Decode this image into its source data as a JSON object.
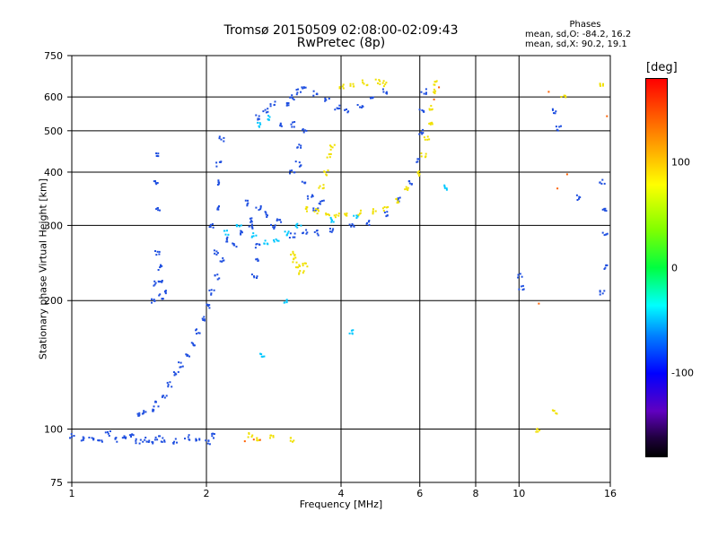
{
  "header": {
    "title_line1": "Tromsø 20150509 02:08:00-02:09:43",
    "title_line2": "RwPretec (8p)"
  },
  "phases": {
    "label": "Phases",
    "o_stats": "mean, sd,O: -84.2, 16.2",
    "x_stats": "mean, sd,X:  90.2, 19.1"
  },
  "chart_data": {
    "type": "scatter",
    "xlabel": "Frequency [MHz]",
    "ylabel": "Stationary phase Virtual Height [km]",
    "xscale": "log",
    "yscale": "log",
    "xlim": [
      1,
      16
    ],
    "ylim": [
      75,
      750
    ],
    "x_ticks": [
      1,
      2,
      4,
      6,
      8,
      10,
      16
    ],
    "x_tick_labels": [
      "1",
      "2",
      "4",
      "6",
      "8",
      "10",
      "16"
    ],
    "y_ticks": [
      75,
      100,
      200,
      300,
      400,
      500,
      600,
      750
    ],
    "y_tick_labels": [
      "75",
      "100",
      "200",
      "300",
      "400",
      "500",
      "600",
      "750"
    ],
    "grid": true,
    "colorbar": {
      "unit": "[deg]",
      "range": [
        -180,
        180
      ],
      "ticks": [
        100,
        0,
        -100
      ],
      "tick_labels": [
        "100",
        "0",
        "-100"
      ]
    },
    "series": [
      {
        "mode": "O",
        "color": "#1f4fe0",
        "points": [
          [
            1.0,
            97
          ],
          [
            1.05,
            95
          ],
          [
            1.1,
            96
          ],
          [
            1.15,
            94
          ],
          [
            1.2,
            98
          ],
          [
            1.25,
            95
          ],
          [
            1.3,
            96
          ],
          [
            1.35,
            97
          ],
          [
            1.4,
            94
          ],
          [
            1.45,
            95
          ],
          [
            1.5,
            93
          ],
          [
            1.55,
            96
          ],
          [
            1.6,
            95
          ],
          [
            1.7,
            94
          ],
          [
            1.8,
            96
          ],
          [
            1.9,
            95
          ],
          [
            2.0,
            94
          ],
          [
            2.05,
            97
          ],
          [
            1.4,
            108
          ],
          [
            1.45,
            110
          ],
          [
            1.5,
            112
          ],
          [
            1.55,
            115
          ],
          [
            1.6,
            120
          ],
          [
            1.65,
            128
          ],
          [
            1.7,
            135
          ],
          [
            1.75,
            142
          ],
          [
            1.8,
            150
          ],
          [
            1.85,
            160
          ],
          [
            1.9,
            170
          ],
          [
            1.95,
            182
          ],
          [
            2.0,
            195
          ],
          [
            2.05,
            210
          ],
          [
            2.1,
            228
          ],
          [
            2.15,
            250
          ],
          [
            2.05,
            300
          ],
          [
            2.1,
            330
          ],
          [
            2.1,
            380
          ],
          [
            2.12,
            420
          ],
          [
            2.15,
            480
          ],
          [
            2.1,
            260
          ],
          [
            2.2,
            280
          ],
          [
            1.52,
            200
          ],
          [
            1.54,
            220
          ],
          [
            1.56,
            240
          ],
          [
            1.55,
            260
          ],
          [
            1.57,
            225
          ],
          [
            1.6,
            210
          ],
          [
            1.58,
            205
          ],
          [
            1.55,
            330
          ],
          [
            1.53,
            380
          ],
          [
            1.55,
            440
          ],
          [
            2.3,
            270
          ],
          [
            2.4,
            290
          ],
          [
            2.5,
            310
          ],
          [
            2.6,
            330
          ],
          [
            2.5,
            300
          ],
          [
            2.45,
            340
          ],
          [
            2.7,
            320
          ],
          [
            2.8,
            300
          ],
          [
            2.9,
            310
          ],
          [
            2.6,
            250
          ],
          [
            2.55,
            230
          ],
          [
            2.6,
            270
          ],
          [
            3.1,
            285
          ],
          [
            3.3,
            290
          ],
          [
            3.5,
            290
          ],
          [
            3.8,
            295
          ],
          [
            4.2,
            300
          ],
          [
            4.6,
            305
          ],
          [
            5.0,
            320
          ],
          [
            5.4,
            345
          ],
          [
            5.7,
            380
          ],
          [
            5.9,
            430
          ],
          [
            6.0,
            500
          ],
          [
            6.05,
            560
          ],
          [
            6.1,
            620
          ],
          [
            3.05,
            580
          ],
          [
            3.1,
            600
          ],
          [
            3.2,
            620
          ],
          [
            3.3,
            630
          ],
          [
            3.5,
            615
          ],
          [
            3.7,
            590
          ],
          [
            3.9,
            570
          ],
          [
            4.1,
            560
          ],
          [
            4.4,
            575
          ],
          [
            4.7,
            600
          ],
          [
            5.0,
            620
          ],
          [
            3.1,
            400
          ],
          [
            3.2,
            420
          ],
          [
            3.3,
            380
          ],
          [
            3.4,
            350
          ],
          [
            3.5,
            330
          ],
          [
            3.6,
            340
          ],
          [
            3.2,
            460
          ],
          [
            3.1,
            520
          ],
          [
            3.3,
            500
          ],
          [
            2.7,
            560
          ],
          [
            2.8,
            580
          ],
          [
            2.6,
            540
          ],
          [
            2.9,
            520
          ],
          [
            10.0,
            230
          ],
          [
            10.1,
            215
          ],
          [
            12.0,
            560
          ],
          [
            12.2,
            510
          ],
          [
            13.5,
            350
          ],
          [
            15.3,
            380
          ],
          [
            15.4,
            330
          ],
          [
            15.5,
            290
          ],
          [
            15.6,
            240
          ],
          [
            15.3,
            210
          ]
        ]
      },
      {
        "mode": "X",
        "color": "#f0e000",
        "points": [
          [
            3.3,
            330
          ],
          [
            3.5,
            325
          ],
          [
            3.7,
            320
          ],
          [
            3.9,
            318
          ],
          [
            4.1,
            320
          ],
          [
            4.4,
            322
          ],
          [
            4.7,
            325
          ],
          [
            5.0,
            330
          ],
          [
            5.3,
            345
          ],
          [
            5.6,
            370
          ],
          [
            5.9,
            400
          ],
          [
            6.1,
            440
          ],
          [
            6.2,
            480
          ],
          [
            6.3,
            520
          ],
          [
            6.35,
            570
          ],
          [
            6.4,
            620
          ],
          [
            6.45,
            650
          ],
          [
            3.1,
            260
          ],
          [
            3.15,
            250
          ],
          [
            3.2,
            240
          ],
          [
            3.25,
            235
          ],
          [
            3.3,
            245
          ],
          [
            3.6,
            370
          ],
          [
            3.7,
            400
          ],
          [
            3.75,
            440
          ],
          [
            3.8,
            460
          ],
          [
            4.0,
            640
          ],
          [
            4.2,
            645
          ],
          [
            4.5,
            650
          ],
          [
            4.8,
            655
          ],
          [
            5.0,
            648
          ],
          [
            2.5,
            97
          ],
          [
            2.6,
            95
          ],
          [
            2.8,
            96
          ],
          [
            3.1,
            95
          ],
          [
            11.0,
            100
          ],
          [
            12.0,
            110
          ],
          [
            12.5,
            610
          ],
          [
            15.2,
            640
          ]
        ]
      },
      {
        "mode": "O-weak",
        "color": "#00c8ff",
        "points": [
          [
            2.2,
            290
          ],
          [
            2.35,
            300
          ],
          [
            2.55,
            285
          ],
          [
            2.7,
            275
          ],
          [
            2.85,
            280
          ],
          [
            3.0,
            290
          ],
          [
            3.2,
            300
          ],
          [
            3.8,
            310
          ],
          [
            4.3,
            315
          ],
          [
            2.75,
            540
          ],
          [
            2.6,
            520
          ],
          [
            2.65,
            150
          ],
          [
            3.0,
            200
          ],
          [
            4.2,
            170
          ],
          [
            6.8,
            370
          ]
        ]
      },
      {
        "mode": "noise",
        "color": "#ff6000",
        "points": [
          [
            2.45,
            95
          ],
          [
            2.55,
            96
          ],
          [
            2.65,
            95
          ],
          [
            6.5,
            590
          ],
          [
            6.6,
            640
          ],
          [
            11.5,
            620
          ],
          [
            12.0,
            370
          ],
          [
            12.8,
            400
          ],
          [
            15.5,
            550
          ],
          [
            11.0,
            200
          ]
        ]
      }
    ]
  }
}
